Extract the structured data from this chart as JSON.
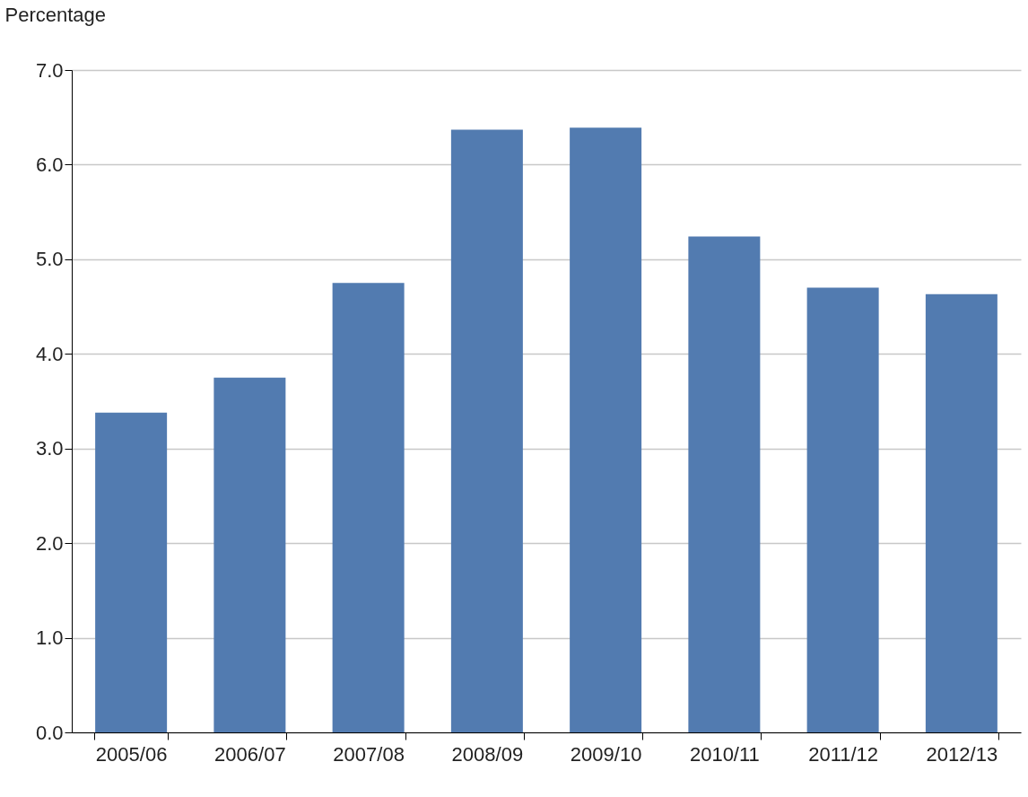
{
  "chart_data": {
    "type": "bar",
    "ylabel": "Percentage",
    "categories": [
      "2005/06",
      "2006/07",
      "2007/08",
      "2008/09",
      "2009/10",
      "2010/11",
      "2011/12",
      "2012/13"
    ],
    "values": [
      3.38,
      3.75,
      4.75,
      6.37,
      6.39,
      5.24,
      4.7,
      4.63
    ],
    "color": "#527bb0",
    "ylim": [
      0,
      7
    ],
    "yticks": [
      {
        "value": 0,
        "label": "0.0"
      },
      {
        "value": 1,
        "label": "1.0"
      },
      {
        "value": 2,
        "label": "2.0"
      },
      {
        "value": 3,
        "label": "3.0"
      },
      {
        "value": 4,
        "label": "4.0"
      },
      {
        "value": 5,
        "label": "5.0"
      },
      {
        "value": 6,
        "label": "6.0"
      },
      {
        "value": 7,
        "label": "7.0"
      }
    ],
    "grid": "y"
  }
}
